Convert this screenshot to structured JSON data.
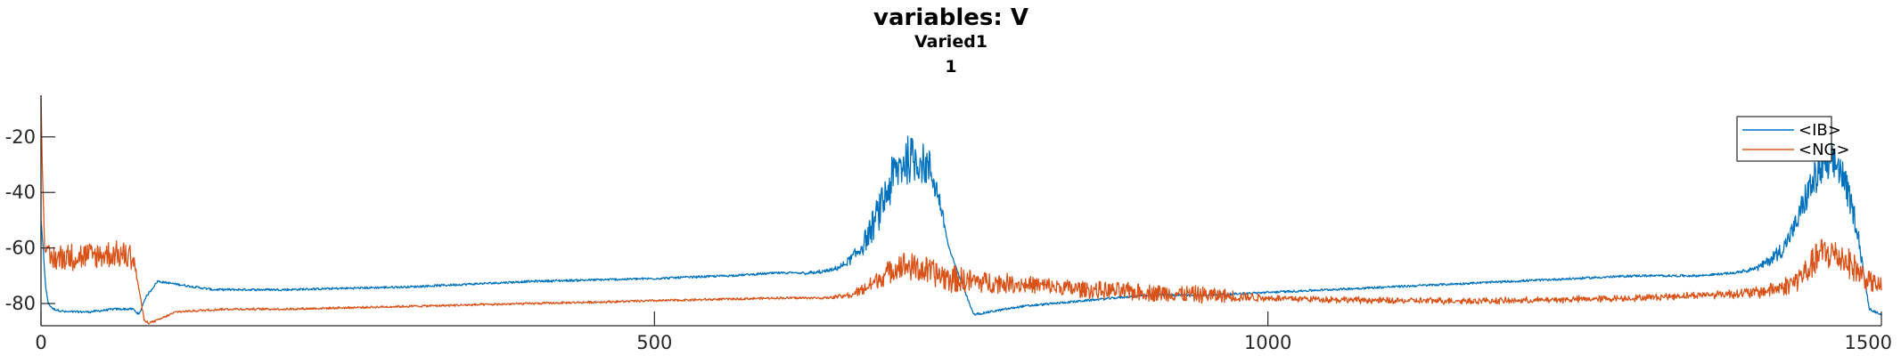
{
  "chart_data": {
    "type": "line",
    "title": "variables: V",
    "subtitle": [
      "Varied1",
      "1"
    ],
    "xlabel": "",
    "ylabel": "",
    "xlim": [
      0,
      1500
    ],
    "ylim": [
      -88,
      -5
    ],
    "xticks": [
      0,
      500,
      1000,
      1500
    ],
    "yticks": [
      -80,
      -60,
      -40,
      -20
    ],
    "xtick_labels": [
      "0",
      "500",
      "1000",
      "1500"
    ],
    "ytick_labels": [
      "-80",
      "-60",
      "-40",
      "-20"
    ],
    "legend": {
      "placement": "top-right",
      "entries": [
        "<IB>",
        "<NG>"
      ]
    },
    "grid": false,
    "series": [
      {
        "name": "<IB>",
        "color": "#0072BD",
        "x": [
          0,
          2,
          4,
          6,
          10,
          20,
          40,
          60,
          75,
          80,
          85,
          95,
          110,
          140,
          200,
          300,
          400,
          500,
          560,
          600,
          630,
          645,
          655,
          665,
          675,
          685,
          695,
          705,
          715,
          725,
          732,
          740,
          760,
          800,
          850,
          900,
          950,
          1000,
          1050,
          1100,
          1150,
          1200,
          1250,
          1300,
          1350,
          1380,
          1390,
          1400,
          1410,
          1420,
          1430,
          1440,
          1450,
          1460,
          1465,
          1470,
          1480,
          1490,
          1500
        ],
        "y": [
          -50,
          -62,
          -75,
          -80,
          -82,
          -83,
          -83,
          -82,
          -82,
          -84,
          -78,
          -72,
          -73,
          -75,
          -75,
          -74,
          -72,
          -71,
          -70,
          -69,
          -69,
          -68,
          -66,
          -62,
          -55,
          -45,
          -34,
          -28,
          -28,
          -32,
          -42,
          -60,
          -84,
          -81,
          -79,
          -77,
          -77,
          -76,
          -75,
          -74,
          -73,
          -72,
          -71,
          -70,
          -70,
          -69,
          -68,
          -67,
          -64,
          -60,
          -52,
          -40,
          -32,
          -30,
          -30,
          -36,
          -52,
          -82,
          -84
        ],
        "noise": [
          0,
          0,
          0,
          0,
          0,
          0,
          0,
          0,
          0,
          0,
          0,
          0,
          0,
          0,
          0,
          0,
          0,
          0,
          0,
          0,
          0.5,
          0.5,
          1,
          3,
          5,
          7,
          9,
          9,
          8,
          7,
          4,
          0,
          0,
          0,
          0,
          0,
          0,
          0,
          0,
          0,
          0,
          0,
          0,
          0,
          0,
          0,
          0.5,
          1,
          2,
          3,
          4,
          6,
          7,
          7,
          7,
          6,
          4,
          0,
          0
        ]
      },
      {
        "name": "<NG>",
        "color": "#D95319",
        "x": [
          0,
          1,
          3,
          5,
          8,
          20,
          40,
          60,
          75,
          80,
          84,
          88,
          95,
          110,
          150,
          200,
          300,
          400,
          500,
          600,
          640,
          660,
          670,
          680,
          700,
          720,
          740,
          760,
          800,
          850,
          900,
          950,
          1000,
          1100,
          1200,
          1300,
          1350,
          1400,
          1420,
          1430,
          1440,
          1450,
          1460,
          1470,
          1480,
          1490,
          1500
        ],
        "y": [
          -5,
          -30,
          -60,
          -64,
          -64,
          -63,
          -63,
          -62,
          -63,
          -75,
          -86,
          -87,
          -86,
          -83,
          -82,
          -82,
          -81,
          -80,
          -79,
          -78,
          -78,
          -77,
          -75,
          -72,
          -66,
          -68,
          -71,
          -72,
          -73,
          -75,
          -76,
          -77,
          -78,
          -79,
          -79,
          -78,
          -77,
          -76,
          -74,
          -72,
          -68,
          -62,
          -62,
          -64,
          -68,
          -72,
          -74
        ],
        "noise": [
          0,
          0,
          0,
          5,
          5,
          5,
          5,
          5,
          5,
          0,
          0,
          0,
          0,
          0,
          0,
          0,
          0,
          0,
          0,
          0,
          0,
          1,
          2,
          3,
          5,
          5,
          5,
          4,
          3,
          3,
          3,
          3,
          1,
          1,
          1,
          1,
          1,
          2,
          3,
          4,
          5,
          6,
          6,
          6,
          5,
          4,
          3
        ]
      }
    ]
  }
}
